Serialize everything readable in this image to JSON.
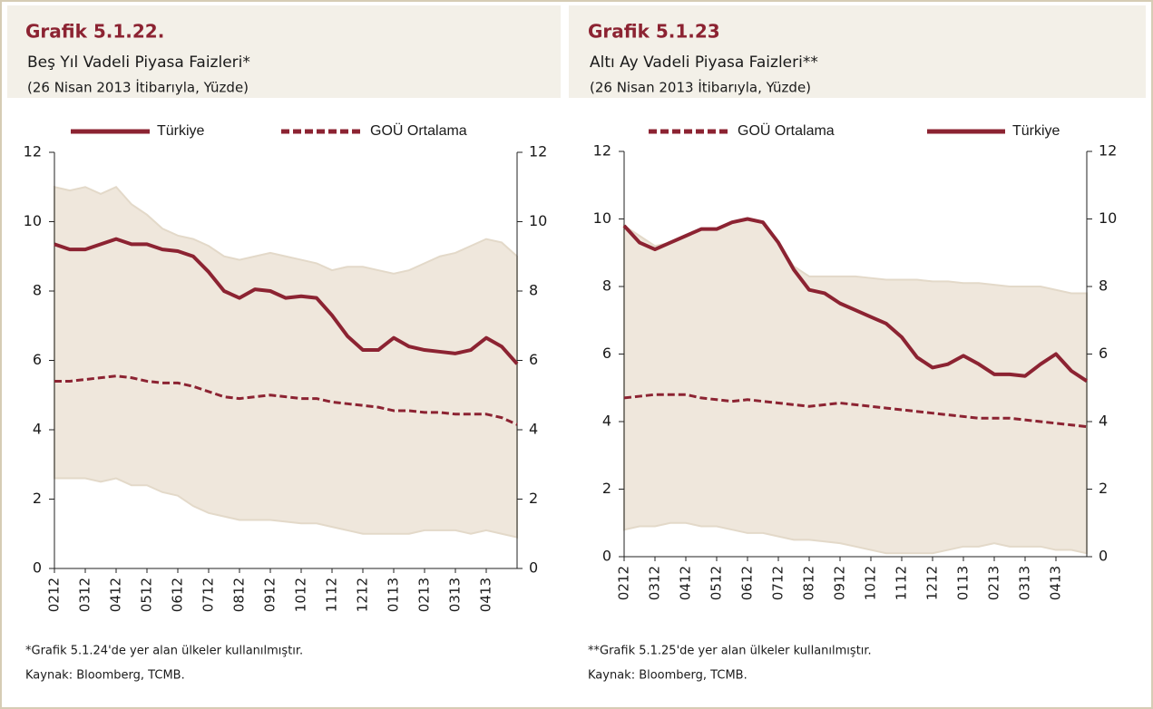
{
  "chart_data": [
    {
      "type": "line",
      "title": "Grafik 5.1.22.",
      "subtitle": "Beş Yıl Vadeli Piyasa Faizleri*",
      "note": "(26 Nisan 2013 İtibarıyla, Yüzde)",
      "categories": [
        "0212",
        null,
        "0312",
        null,
        "0412",
        null,
        "0512",
        null,
        "0612",
        null,
        "0712",
        null,
        "0812",
        null,
        "0912",
        null,
        "1012",
        null,
        "1112",
        null,
        "1212",
        null,
        "0113",
        null,
        "0213",
        null,
        "0313",
        null,
        "0413",
        null,
        null
      ],
      "series": [
        {
          "name": "Türkiye",
          "color": "#8c2332",
          "style": "solid",
          "values": [
            9.35,
            9.2,
            9.2,
            9.35,
            9.5,
            9.35,
            9.35,
            9.2,
            9.15,
            9.0,
            8.55,
            8.0,
            7.8,
            8.05,
            8.0,
            7.8,
            7.85,
            7.8,
            7.3,
            6.7,
            6.3,
            6.3,
            6.65,
            6.4,
            6.3,
            6.25,
            6.2,
            6.3,
            6.65,
            6.4,
            5.9
          ]
        },
        {
          "name": "GOÜ Ortalama",
          "color": "#8c2332",
          "style": "dashed",
          "values": [
            5.4,
            5.4,
            5.45,
            5.5,
            5.55,
            5.5,
            5.4,
            5.35,
            5.35,
            5.25,
            5.1,
            4.95,
            4.9,
            4.95,
            5.0,
            4.95,
            4.9,
            4.9,
            4.8,
            4.75,
            4.7,
            4.65,
            4.55,
            4.55,
            4.5,
            4.5,
            4.45,
            4.45,
            4.45,
            4.35,
            4.15
          ]
        }
      ],
      "band": {
        "color": "#efe7dc",
        "upper": [
          11.0,
          10.9,
          11.0,
          10.8,
          11.0,
          10.5,
          10.2,
          9.8,
          9.6,
          9.5,
          9.3,
          9.0,
          8.9,
          9.0,
          9.1,
          9.0,
          8.9,
          8.8,
          8.6,
          8.7,
          8.7,
          8.6,
          8.5,
          8.6,
          8.8,
          9.0,
          9.1,
          9.3,
          9.5,
          9.4,
          9.0
        ],
        "lower": [
          2.6,
          2.6,
          2.6,
          2.5,
          2.6,
          2.4,
          2.4,
          2.2,
          2.1,
          1.8,
          1.6,
          1.5,
          1.4,
          1.4,
          1.4,
          1.35,
          1.3,
          1.3,
          1.2,
          1.1,
          1.0,
          1.0,
          1.0,
          1.0,
          1.1,
          1.1,
          1.1,
          1.0,
          1.1,
          1.0,
          0.9
        ]
      },
      "ylim": [
        0,
        12
      ],
      "yticks": [
        0,
        2,
        4,
        6,
        8,
        10,
        12
      ],
      "y2lim": [
        0,
        12
      ],
      "y2ticks": [
        0,
        2,
        4,
        6,
        8,
        10,
        12
      ],
      "footnotes": [
        "*Grafik 5.1.24'de yer alan ülkeler kullanılmıştır.",
        "Kaynak: Bloomberg, TCMB."
      ]
    },
    {
      "type": "line",
      "title": "Grafik 5.1.23",
      "subtitle": "Altı Ay Vadeli Piyasa Faizleri**",
      "note": "(26 Nisan 2013 İtibarıyla, Yüzde)",
      "categories": [
        "0212",
        null,
        "0312",
        null,
        "0412",
        null,
        "0512",
        null,
        "0612",
        null,
        "0712",
        null,
        "0812",
        null,
        "0912",
        null,
        "1012",
        null,
        "1112",
        null,
        "1212",
        null,
        "0113",
        null,
        "0213",
        null,
        "0313",
        null,
        "0413",
        null,
        null
      ],
      "series": [
        {
          "name": "GOÜ Ortalama",
          "color": "#8c2332",
          "style": "dashed",
          "values": [
            4.7,
            4.75,
            4.8,
            4.8,
            4.8,
            4.7,
            4.65,
            4.6,
            4.65,
            4.6,
            4.55,
            4.5,
            4.45,
            4.5,
            4.55,
            4.5,
            4.45,
            4.4,
            4.35,
            4.3,
            4.25,
            4.2,
            4.15,
            4.1,
            4.1,
            4.1,
            4.05,
            4.0,
            3.95,
            3.9,
            3.85
          ]
        },
        {
          "name": "Türkiye",
          "color": "#8c2332",
          "style": "solid",
          "values": [
            9.8,
            9.3,
            9.1,
            9.3,
            9.5,
            9.7,
            9.7,
            9.9,
            10.0,
            9.9,
            9.3,
            8.5,
            7.9,
            7.8,
            7.5,
            7.3,
            7.1,
            6.9,
            6.5,
            5.9,
            5.6,
            5.7,
            5.95,
            5.7,
            5.4,
            5.4,
            5.35,
            5.7,
            6.0,
            5.5,
            5.2
          ]
        }
      ],
      "band": {
        "color": "#efe7dc",
        "upper": [
          9.8,
          9.5,
          9.2,
          9.3,
          9.5,
          9.7,
          9.7,
          9.9,
          10.0,
          9.9,
          9.3,
          8.6,
          8.3,
          8.3,
          8.3,
          8.3,
          8.25,
          8.2,
          8.2,
          8.2,
          8.15,
          8.15,
          8.1,
          8.1,
          8.05,
          8.0,
          8.0,
          8.0,
          7.9,
          7.8,
          7.8
        ],
        "lower": [
          0.8,
          0.9,
          0.9,
          1.0,
          1.0,
          0.9,
          0.9,
          0.8,
          0.7,
          0.7,
          0.6,
          0.5,
          0.5,
          0.45,
          0.4,
          0.3,
          0.2,
          0.1,
          0.1,
          0.1,
          0.1,
          0.2,
          0.3,
          0.3,
          0.4,
          0.3,
          0.3,
          0.3,
          0.2,
          0.2,
          0.1
        ]
      },
      "ylim": [
        0,
        12
      ],
      "yticks": [
        0,
        2,
        4,
        6,
        8,
        10,
        12
      ],
      "y2lim": [
        0,
        12
      ],
      "y2ticks": [
        0,
        2,
        4,
        6,
        8,
        10,
        12
      ],
      "footnotes": [
        "**Grafik 5.1.25'de yer alan ülkeler kullanılmıştır.",
        "Kaynak: Bloomberg, TCMB."
      ]
    }
  ]
}
